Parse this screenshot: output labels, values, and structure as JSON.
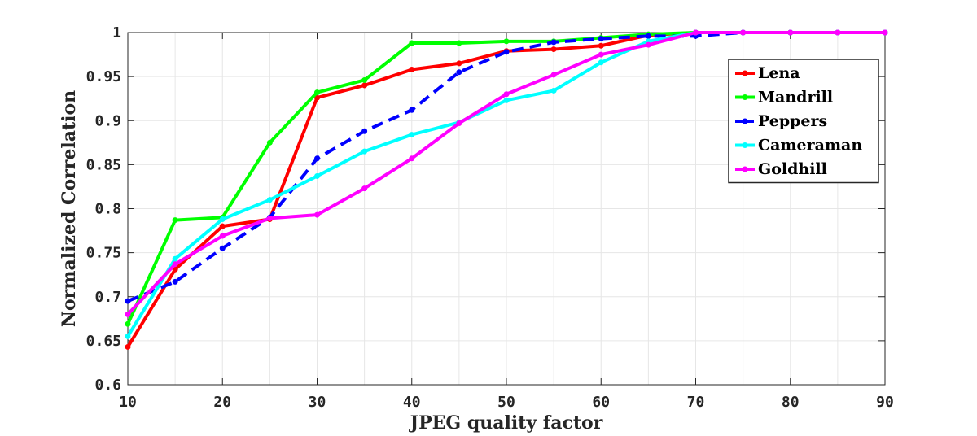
{
  "chart_data": {
    "type": "line",
    "title": "",
    "xlabel": "JPEG quality factor",
    "ylabel": "Normalized Correlation",
    "xlim": [
      10,
      90
    ],
    "ylim": [
      0.6,
      1.0
    ],
    "xticks": [
      10,
      20,
      30,
      40,
      50,
      60,
      70,
      80,
      90
    ],
    "yticks": [
      0.6,
      0.65,
      0.7,
      0.75,
      0.8,
      0.85,
      0.9,
      0.95,
      1
    ],
    "xtick_labels": [
      "10",
      "20",
      "30",
      "40",
      "50",
      "60",
      "70",
      "80",
      "90"
    ],
    "ytick_labels": [
      "0.6",
      "0.65",
      "0.7",
      "0.75",
      "0.8",
      "0.85",
      "0.9",
      "0.95",
      "1"
    ],
    "grid": true,
    "legend_position": "top-right",
    "x": [
      10,
      15,
      20,
      25,
      30,
      35,
      40,
      45,
      50,
      55,
      60,
      65,
      70,
      75,
      80,
      85,
      90
    ],
    "series": [
      {
        "name": "Lena",
        "color": "#ff0000",
        "dash": "solid",
        "values": [
          0.643,
          0.731,
          0.78,
          0.788,
          0.926,
          0.94,
          0.958,
          0.965,
          0.979,
          0.981,
          0.985,
          0.997,
          1.0,
          1.0,
          1.0,
          1.0,
          1.0
        ]
      },
      {
        "name": "Mandrill",
        "color": "#00ff00",
        "dash": "solid",
        "values": [
          0.669,
          0.787,
          0.79,
          0.875,
          0.932,
          0.946,
          0.988,
          0.988,
          0.99,
          0.99,
          0.994,
          0.998,
          1.0,
          1.0,
          1.0,
          1.0,
          1.0
        ]
      },
      {
        "name": "Peppers",
        "color": "#0000ff",
        "dash": "dashed",
        "values": [
          0.695,
          0.717,
          0.755,
          0.79,
          0.857,
          0.888,
          0.912,
          0.955,
          0.978,
          0.989,
          0.993,
          0.996,
          0.996,
          1.0,
          1.0,
          1.0,
          1.0
        ]
      },
      {
        "name": "Cameraman",
        "color": "#00ffff",
        "dash": "solid",
        "values": [
          0.655,
          0.743,
          0.788,
          0.81,
          0.837,
          0.865,
          0.884,
          0.898,
          0.923,
          0.934,
          0.966,
          0.99,
          1.0,
          1.0,
          1.0,
          1.0,
          1.0
        ]
      },
      {
        "name": "Goldhill",
        "color": "#ff00ff",
        "dash": "solid",
        "values": [
          0.68,
          0.737,
          0.769,
          0.789,
          0.793,
          0.823,
          0.857,
          0.897,
          0.93,
          0.952,
          0.975,
          0.986,
          1.0,
          1.0,
          1.0,
          1.0,
          1.0
        ]
      }
    ]
  }
}
